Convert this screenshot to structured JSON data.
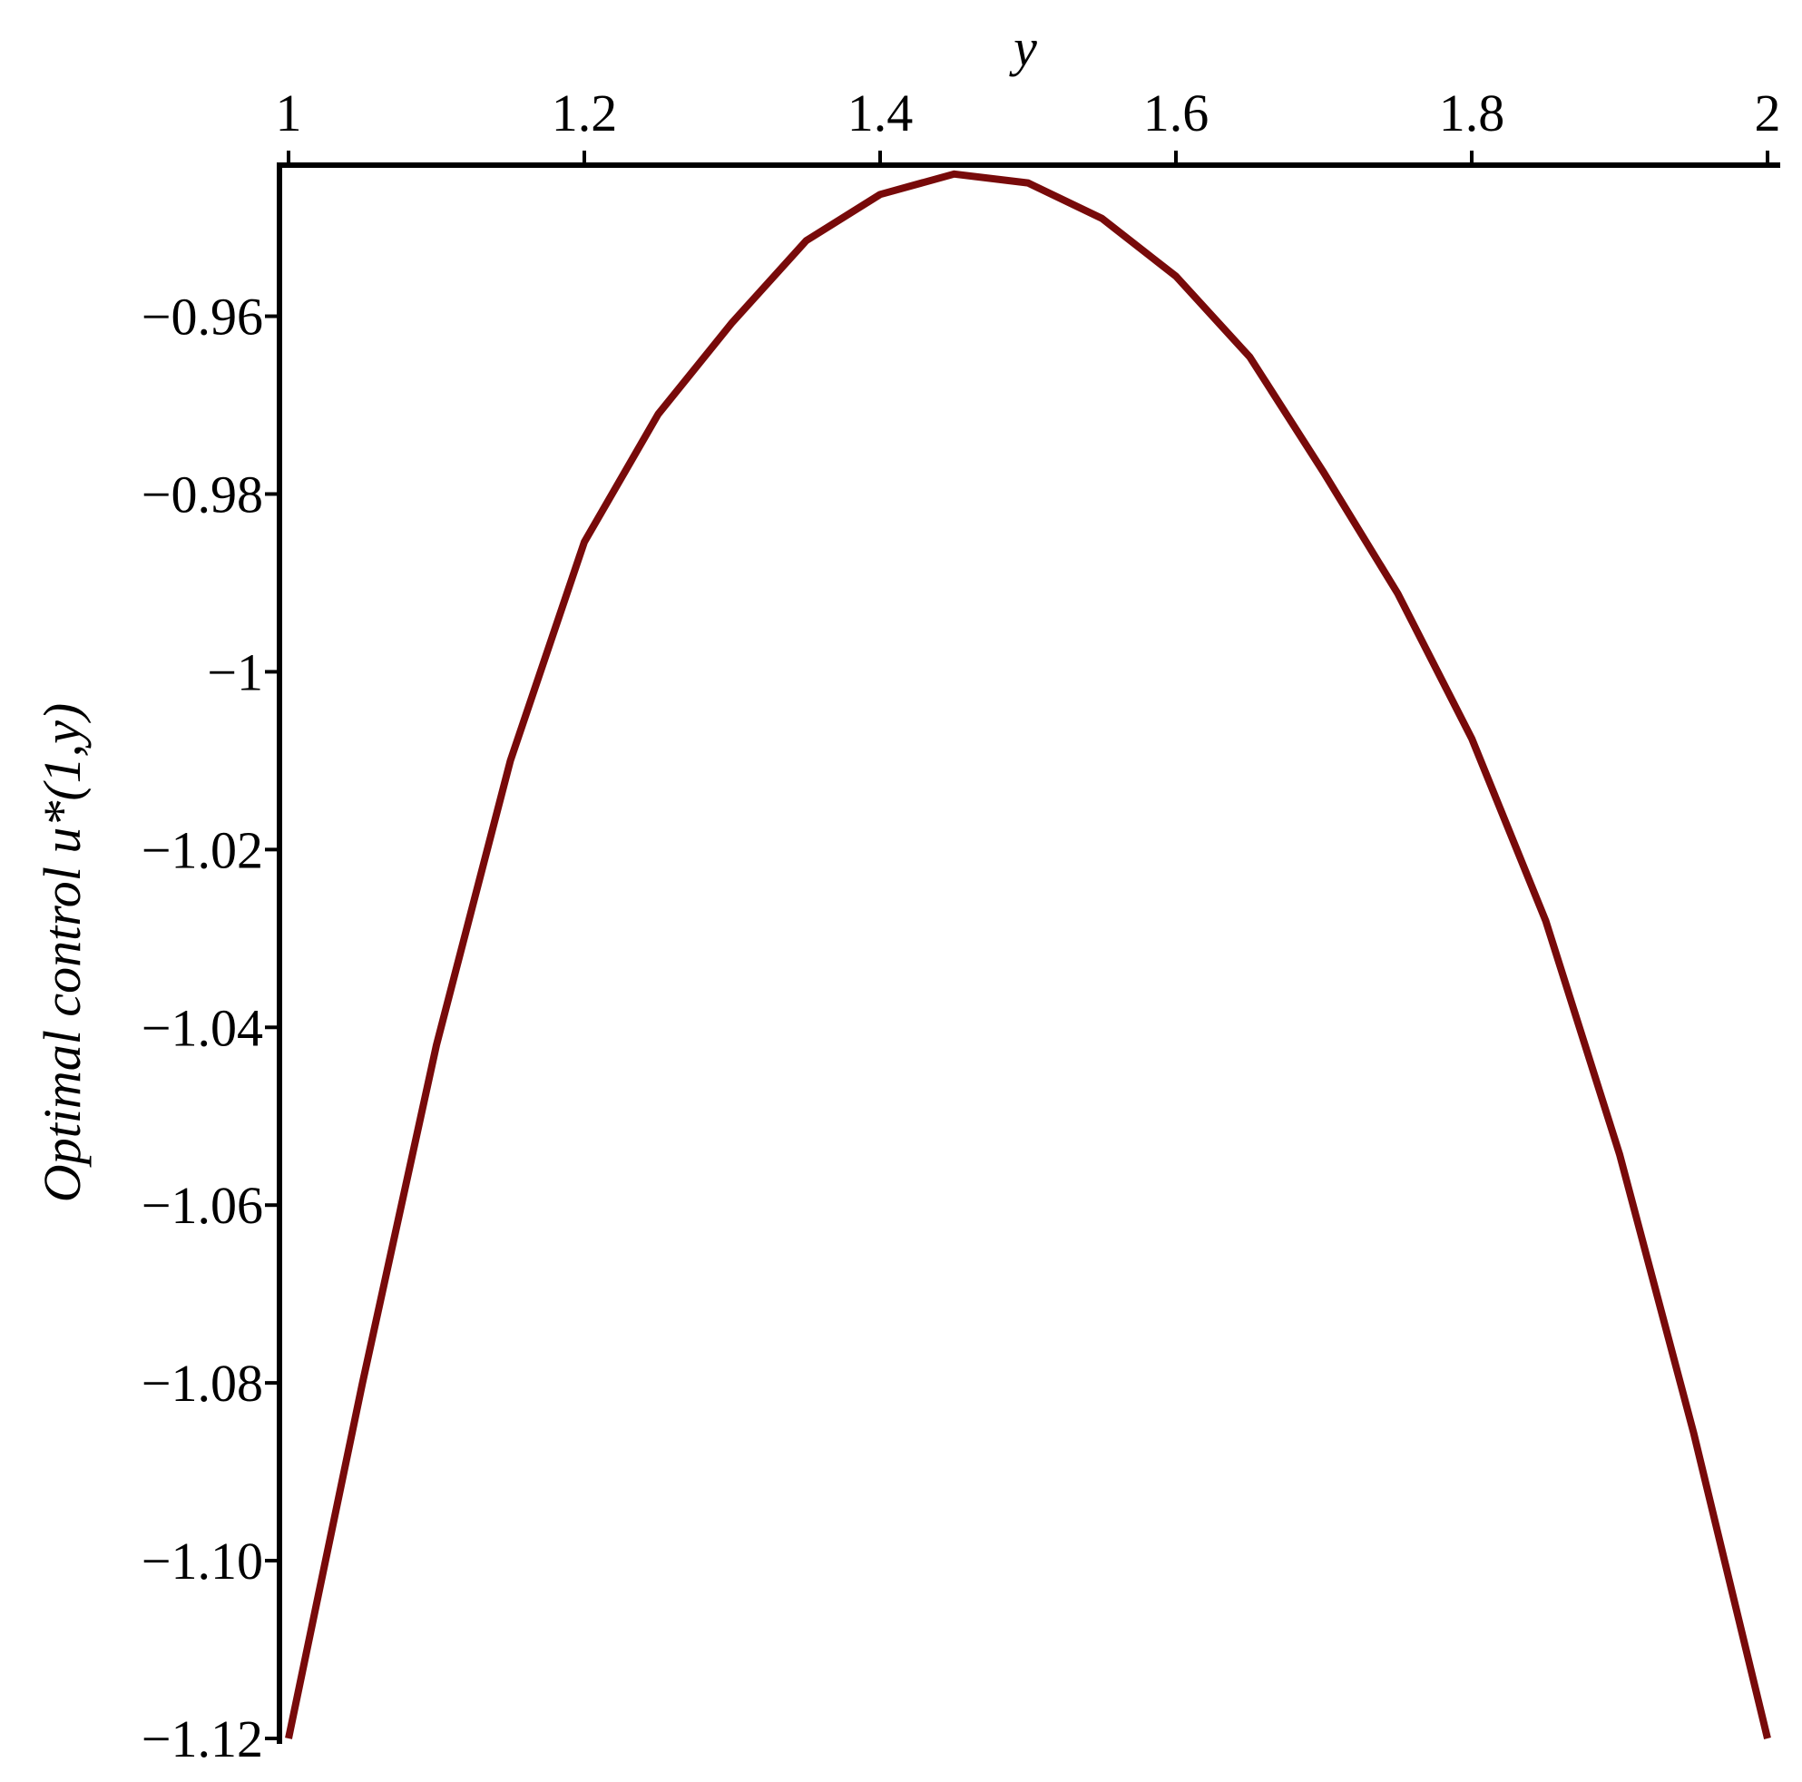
{
  "chart_data": {
    "type": "line",
    "x_label": "y",
    "y_label": "Optimal control u*(1,y)",
    "x": [
      1.0,
      1.05,
      1.1,
      1.15,
      1.2,
      1.25,
      1.3,
      1.35,
      1.4,
      1.45,
      1.5,
      1.55,
      1.6,
      1.65,
      1.7,
      1.75,
      1.8,
      1.85,
      1.9,
      1.95,
      2.0
    ],
    "series": [
      {
        "name": "u*(1,y)",
        "color": "#780a0a",
        "values": [
          -1.12,
          -1.08,
          -1.042,
          -1.01,
          -0.9854,
          -0.971,
          -0.9607,
          -0.9515,
          -0.9463,
          -0.944,
          -0.945,
          -0.949,
          -0.9555,
          -0.9646,
          -0.9776,
          -0.9912,
          -1.0075,
          -1.028,
          -1.0543,
          -1.0856,
          -1.12
        ]
      }
    ],
    "xlim": [
      1,
      2
    ],
    "xticks": [
      1,
      1.2,
      1.4,
      1.6,
      1.8,
      2
    ],
    "ylim": [
      -1.12,
      -0.943
    ],
    "yticks": [
      {
        "value": -0.96,
        "label": "−0.96"
      },
      {
        "value": -0.98,
        "label": "−0.98"
      },
      {
        "value": -1,
        "label": "−1"
      },
      {
        "value": -1.02,
        "label": "−1.02"
      },
      {
        "value": -1.04,
        "label": "−1.04"
      },
      {
        "value": -1.06,
        "label": "−1.06"
      },
      {
        "value": -1.08,
        "label": "−1.08"
      },
      {
        "value": -1.1,
        "label": "−1.10"
      },
      {
        "value": -1.12,
        "label": "−1.12"
      }
    ]
  }
}
